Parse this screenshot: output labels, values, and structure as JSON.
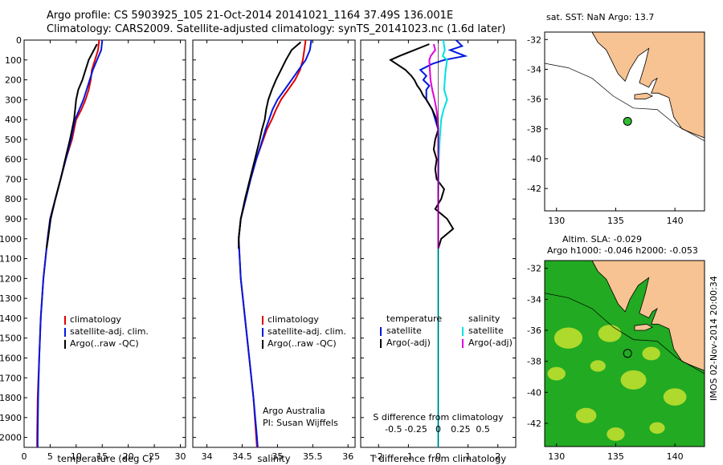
{
  "header": {
    "line1": "Argo profile: CS 5903925_105 21-Oct-2014 20141021_1164 37.49S 136.001E",
    "line2": "Climatology: CARS2009. Satellite-adjusted climatology: synTS_20141023.nc (1.6d later)"
  },
  "stamp": "IMOS 02-Nov-2014 20:00:34",
  "chart_data": [
    {
      "type": "line",
      "id": "temperature",
      "xlabel": "temperature (deg C)",
      "xlim": [
        0,
        31
      ],
      "xticks": [
        0,
        5,
        10,
        15,
        20,
        25,
        30
      ],
      "ylim": [
        2050,
        0
      ],
      "yticks": [
        0,
        100,
        200,
        300,
        400,
        500,
        600,
        700,
        800,
        900,
        1000,
        1100,
        1200,
        1300,
        1400,
        1500,
        1600,
        1700,
        1800,
        1900,
        2000
      ],
      "colors": {
        "climatology": "#e00000",
        "satellite": "#0018e0",
        "argo": "#000000"
      },
      "legend": [
        "climatology",
        "satellite-adj. clim.",
        "Argo(..raw -QC)"
      ],
      "series": [
        {
          "name": "climatology",
          "key": "climatology",
          "y": [
            0,
            50,
            100,
            150,
            200,
            250,
            300,
            350,
            400,
            450,
            500,
            600,
            700,
            800,
            900,
            1000,
            1200,
            1400,
            1600,
            1800,
            2000,
            2050
          ],
          "x": [
            14.4,
            14.2,
            13.6,
            13.0,
            12.8,
            12.4,
            11.8,
            11.0,
            10.0,
            9.6,
            9.2,
            8.0,
            7.0,
            6.0,
            5.0,
            4.5,
            3.7,
            3.2,
            2.9,
            2.6,
            2.5,
            2.5
          ]
        },
        {
          "name": "satellite-adj. clim.",
          "key": "satellite",
          "y": [
            0,
            50,
            100,
            150,
            200,
            250,
            300,
            350,
            400,
            450,
            500,
            600,
            700,
            800,
            900,
            1000,
            1200,
            1400,
            1600,
            1800,
            2000,
            2050
          ],
          "x": [
            15.0,
            14.8,
            14.0,
            13.2,
            12.6,
            12.0,
            11.4,
            10.6,
            9.8,
            9.4,
            9.0,
            8.0,
            7.0,
            6.0,
            5.0,
            4.5,
            3.7,
            3.2,
            2.9,
            2.7,
            2.6,
            2.6
          ]
        },
        {
          "name": "Argo(..raw -QC)",
          "key": "argo",
          "y": [
            20,
            60,
            100,
            150,
            200,
            250,
            300,
            350,
            400,
            450,
            500,
            600,
            700,
            800,
            900,
            1000,
            1050
          ],
          "x": [
            14.0,
            13.2,
            12.4,
            11.8,
            11.2,
            10.4,
            10.0,
            9.8,
            9.6,
            9.2,
            8.8,
            7.9,
            7.0,
            6.0,
            5.1,
            4.6,
            4.3
          ]
        }
      ]
    },
    {
      "type": "line",
      "id": "salinity",
      "xlabel": "salinity",
      "xlim": [
        33.8,
        36.1
      ],
      "xticks": [
        34,
        34.5,
        35,
        35.5,
        36
      ],
      "ylim": [
        2050,
        0
      ],
      "colors": {
        "climatology": "#e00000",
        "satellite": "#0018e0",
        "argo": "#000000"
      },
      "legend": [
        "climatology",
        "satellite-adj. clim.",
        "Argo(..raw -QC)"
      ],
      "annotation": [
        "Argo Australia",
        "PI: Susan Wijffels"
      ],
      "series": [
        {
          "name": "climatology",
          "key": "climatology",
          "y": [
            0,
            50,
            100,
            150,
            200,
            250,
            300,
            350,
            400,
            450,
            500,
            600,
            700,
            800,
            900,
            1000,
            1200,
            1400,
            1600,
            1800,
            2000,
            2050
          ],
          "x": [
            35.4,
            35.38,
            35.36,
            35.32,
            35.25,
            35.15,
            35.05,
            34.98,
            34.92,
            34.85,
            34.8,
            34.7,
            34.62,
            34.55,
            34.48,
            34.45,
            34.48,
            34.54,
            34.6,
            34.66,
            34.7,
            34.71
          ]
        },
        {
          "name": "satellite-adj. clim.",
          "key": "satellite",
          "y": [
            0,
            50,
            100,
            150,
            200,
            250,
            300,
            350,
            400,
            450,
            500,
            600,
            700,
            800,
            900,
            1000,
            1200,
            1400,
            1600,
            1800,
            2000,
            2050
          ],
          "x": [
            35.48,
            35.46,
            35.4,
            35.3,
            35.2,
            35.1,
            35.0,
            34.93,
            34.88,
            34.83,
            34.79,
            34.7,
            34.62,
            34.55,
            34.48,
            34.45,
            34.48,
            34.54,
            34.6,
            34.66,
            34.71,
            34.72
          ]
        },
        {
          "name": "Argo(..raw -QC)",
          "key": "argo",
          "y": [
            10,
            50,
            100,
            150,
            200,
            250,
            300,
            350,
            400,
            450,
            500,
            600,
            700,
            800,
            900,
            1000,
            1050
          ],
          "x": [
            35.33,
            35.2,
            35.12,
            35.05,
            34.98,
            34.92,
            34.87,
            34.84,
            34.82,
            34.78,
            34.75,
            34.68,
            34.61,
            34.54,
            34.48,
            34.45,
            34.45
          ]
        }
      ]
    },
    {
      "type": "line",
      "id": "difference",
      "xlabel": "T difference from climatology",
      "xlabel_top": "S difference from climatology",
      "xlim": [
        -2.6,
        2.6
      ],
      "xticks": [
        -2,
        -1,
        0,
        1,
        2
      ],
      "xticks_S": [
        "-0.5",
        "-0.25",
        "0",
        "0.25",
        "0.5"
      ],
      "ylim": [
        2050,
        0
      ],
      "colors": {
        "t_sat": "#0018e0",
        "t_argo": "#000000",
        "s_sat": "#00e0e0",
        "s_argo": "#e000e0"
      },
      "legend_left": {
        "title": "temperature",
        "items": [
          "satellite",
          "Argo(-adj)"
        ]
      },
      "legend_right": {
        "title": "salinity",
        "items": [
          "satellite",
          "Argo(-adj)"
        ]
      },
      "series": [
        {
          "name": "satellite",
          "key": "t_sat",
          "y": [
            0,
            30,
            50,
            80,
            100,
            120,
            150,
            180,
            200,
            230,
            250,
            300,
            350,
            400,
            450,
            500,
            600,
            700,
            800,
            900,
            1000,
            1100,
            1200,
            1400,
            1600,
            1800,
            2000,
            2050
          ],
          "x": [
            0.6,
            0.8,
            0.4,
            0.9,
            0.2,
            -0.2,
            -0.6,
            -0.4,
            -0.5,
            -0.3,
            -0.4,
            -0.4,
            -0.2,
            -0.1,
            0.0,
            0.0,
            0.0,
            0.0,
            0.0,
            0.0,
            0.0,
            0.0,
            0.0,
            0.0,
            0.0,
            0.0,
            0.0,
            0.0
          ]
        },
        {
          "name": "Argo(-adj)",
          "key": "t_argo",
          "y": [
            20,
            50,
            80,
            100,
            120,
            150,
            180,
            200,
            230,
            250,
            280,
            300,
            350,
            400,
            450,
            500,
            550,
            600,
            650,
            700,
            750,
            800,
            850,
            900,
            950,
            1000,
            1050
          ],
          "x": [
            -0.3,
            -0.8,
            -1.3,
            -1.6,
            -1.4,
            -1.1,
            -0.9,
            -0.8,
            -0.7,
            -0.6,
            -0.5,
            -0.4,
            -0.2,
            -0.05,
            0.0,
            -0.1,
            -0.15,
            -0.05,
            -0.1,
            -0.05,
            0.2,
            0.1,
            -0.1,
            0.3,
            0.5,
            0.1,
            0.0
          ]
        },
        {
          "name": "satellite",
          "key": "s_sat",
          "y": [
            0,
            50,
            80,
            100,
            150,
            200,
            250,
            300,
            350,
            400,
            500,
            600,
            800,
            1000,
            1200,
            1400,
            1600,
            1800,
            2000,
            2050
          ],
          "x": [
            0.17,
            0.22,
            0.15,
            0.3,
            0.25,
            0.22,
            0.2,
            0.3,
            0.18,
            0.1,
            0.05,
            0.02,
            0.0,
            0.0,
            0.0,
            0.0,
            0.0,
            0.0,
            0.0,
            0.0
          ]
        },
        {
          "name": "Argo(-adj)",
          "key": "s_argo",
          "y": [
            20,
            50,
            80,
            100,
            150,
            200,
            250,
            300,
            350,
            400,
            450,
            500,
            550,
            600,
            700,
            800,
            900,
            1000,
            1050
          ],
          "x": [
            -0.15,
            -0.1,
            -0.25,
            -0.3,
            -0.28,
            -0.26,
            -0.2,
            -0.12,
            -0.06,
            -0.02,
            0.0,
            0.0,
            0.0,
            0.0,
            0.0,
            0.0,
            0.0,
            0.0,
            0.0
          ]
        }
      ]
    },
    {
      "type": "scatter",
      "id": "sst_map",
      "title": "sat. SST: NaN Argo: 13.7",
      "xlim": [
        129,
        142.5
      ],
      "ylim": [
        -43.5,
        -31.5
      ],
      "xticks": [
        130,
        135,
        140
      ],
      "yticks": [
        -32,
        -34,
        -36,
        -38,
        -40,
        -42
      ],
      "point": {
        "lon": 136.001,
        "lat": -37.49
      },
      "colors": {
        "land": "#f7c393",
        "point": "#33bb33"
      }
    },
    {
      "type": "heatmap",
      "id": "sla_map",
      "title": [
        "Altim. SLA: -0.029",
        "Argo h1000: -0.046 h2000: -0.053"
      ],
      "xlim": [
        129,
        142.5
      ],
      "ylim": [
        -43.5,
        -31.5
      ],
      "xticks": [
        130,
        135,
        140
      ],
      "yticks": [
        -32,
        -34,
        -36,
        -38,
        -40,
        -42
      ],
      "point": {
        "lon": 136.001,
        "lat": -37.49
      },
      "colors": {
        "land": "#f7c393",
        "sea": "#22aa22",
        "high": "#dde832"
      }
    }
  ]
}
